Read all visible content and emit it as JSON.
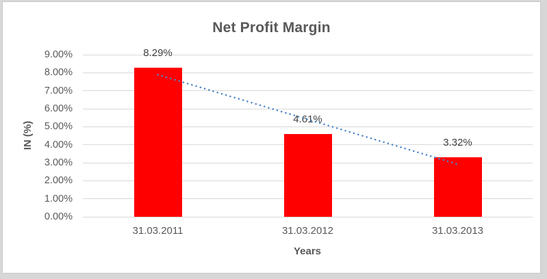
{
  "window": {
    "outer_background": "#D7D7D7",
    "chart_background": "#FFFFFF",
    "chart_border_color": "#C9C9C9"
  },
  "chart_data": {
    "type": "bar",
    "title": "Net Profit Margin",
    "xlabel": "Years",
    "ylabel": "IN (%)",
    "categories": [
      "31.03.2011",
      "31.03.2012",
      "31.03.2013"
    ],
    "values": [
      8.29,
      4.61,
      3.32
    ],
    "data_labels": [
      "8.29%",
      "4.61%",
      "3.32%"
    ],
    "ylim": [
      0,
      9
    ],
    "ytick_labels": [
      "0.00%",
      "1.00%",
      "2.00%",
      "3.00%",
      "4.00%",
      "5.00%",
      "6.00%",
      "7.00%",
      "8.00%",
      "9.00%"
    ],
    "grid": true,
    "legend": "none",
    "bar_color": "#FF0000",
    "gridline_color": "#D9D9D9",
    "axis_text_color": "#595959",
    "data_label_color": "#404040",
    "title_color": "#595959",
    "trendline": {
      "type": "linear",
      "style": "dotted",
      "color": "#4A86C8",
      "y_start": 7.89,
      "y_end": 2.92
    }
  }
}
